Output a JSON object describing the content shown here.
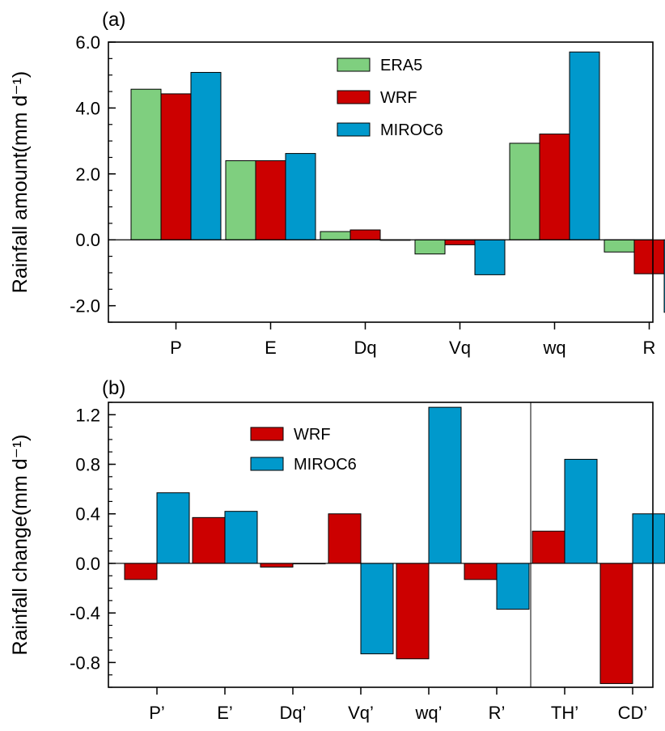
{
  "chart_data": [
    {
      "type": "bar",
      "panel_label": "(a)",
      "ylabel": "Rainfall amount(mm d⁻¹)",
      "ylim": [
        -2.5,
        6.0
      ],
      "yticks": [
        -2.0,
        0.0,
        2.0,
        4.0,
        6.0
      ],
      "ytick_labels": [
        "-2.0",
        "0.0",
        "2.0",
        "4.0",
        "6.0"
      ],
      "categories": [
        "P",
        "E",
        "Dq",
        "Vq",
        "wq",
        "R"
      ],
      "series": [
        {
          "name": "ERA5",
          "color": "#7fcf7f",
          "values": [
            4.57,
            2.4,
            0.25,
            -0.43,
            2.93,
            -0.37
          ]
        },
        {
          "name": "WRF",
          "color": "#cc0000",
          "values": [
            4.43,
            2.4,
            0.3,
            -0.15,
            3.21,
            -1.03
          ]
        },
        {
          "name": "MIROC6",
          "color": "#0099cc",
          "values": [
            5.08,
            2.62,
            0.0,
            -1.06,
            5.7,
            -2.2
          ]
        }
      ],
      "legend_position": "top-center",
      "grid": false
    },
    {
      "type": "bar",
      "panel_label": "(b)",
      "ylabel": "Rainfall change(mm d⁻¹)",
      "ylim": [
        -1.0,
        1.3
      ],
      "yticks": [
        -0.8,
        -0.4,
        0.0,
        0.4,
        0.8,
        1.2
      ],
      "ytick_labels": [
        "-0.8",
        "-0.4",
        "0.0",
        "0.4",
        "0.8",
        "1.2"
      ],
      "categories": [
        "P’",
        "E’",
        "Dq’",
        "Vq’",
        "wq’",
        "R’",
        "TH’",
        "CD’"
      ],
      "separator_after_category": 6,
      "series": [
        {
          "name": "WRF",
          "color": "#cc0000",
          "values": [
            -0.13,
            0.37,
            -0.03,
            0.4,
            -0.77,
            -0.13,
            0.26,
            -0.97
          ]
        },
        {
          "name": "MIROC6",
          "color": "#0099cc",
          "values": [
            0.57,
            0.42,
            0.0,
            -0.73,
            1.26,
            -0.37,
            0.84,
            0.4
          ]
        }
      ],
      "legend_position": "top-center",
      "grid": false
    }
  ]
}
